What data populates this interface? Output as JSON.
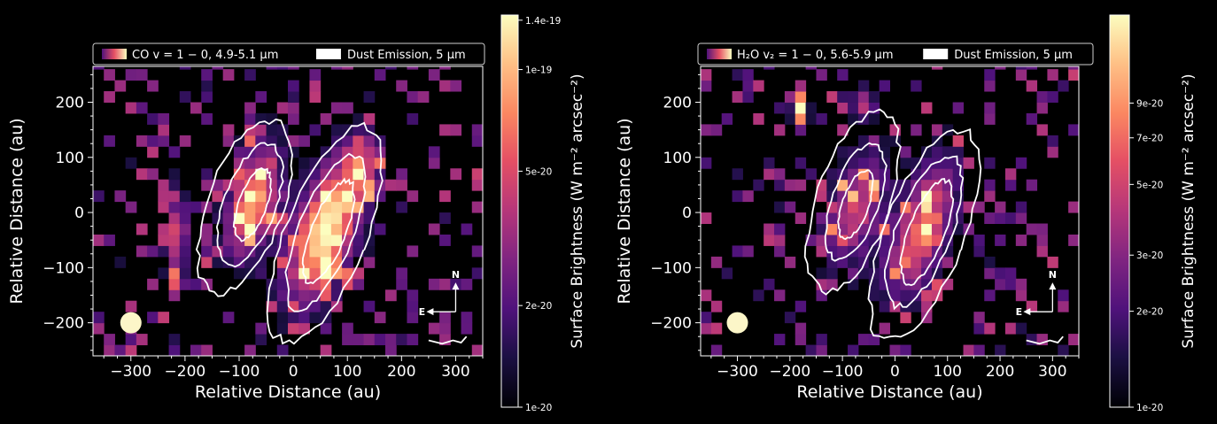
{
  "chart_data": [
    {
      "type": "heatmap",
      "xlabel": "Relative Distance (au)",
      "ylabel": "Relative Distance (au)",
      "xlim": [
        -370,
        350
      ],
      "ylim": [
        -260,
        265
      ],
      "xticks": [
        "−300",
        "−200",
        "−100",
        "0",
        "100",
        "200",
        "300"
      ],
      "xtick_values": [
        -300,
        -200,
        -100,
        0,
        100,
        200,
        300
      ],
      "yticks": [
        "200",
        "100",
        "0",
        "−100",
        "−200"
      ],
      "ytick_values": [
        200,
        100,
        0,
        -100,
        -200
      ],
      "legend": {
        "placement": "top",
        "entries": [
          {
            "label": "CO v = 1 − 0, 4.9-5.1 μm",
            "kind": "gradient"
          },
          {
            "label": "Dust Emission, 5 μm",
            "kind": "white"
          }
        ]
      },
      "colorbar": {
        "label": "Surface Brightness (W m⁻² arcsec⁻²)",
        "scale": "log",
        "min": 1e-20,
        "max": 1.45e-19,
        "ticks": [
          "1.4e-19",
          "1e-19",
          "5e-20",
          "2e-20",
          "1e-20"
        ],
        "tick_values": [
          1.4e-19,
          1e-19,
          5e-20,
          2e-20,
          1e-20
        ]
      },
      "compass": {
        "north": "N",
        "east": "E"
      },
      "beam": {
        "x": -300,
        "y": -200
      },
      "emission_blobs": [
        {
          "x": -75,
          "y": 20,
          "sx": 30,
          "sy": 70,
          "rot": 15,
          "amp": 0.85
        },
        {
          "x": 60,
          "y": -30,
          "sx": 38,
          "sy": 95,
          "rot": 20,
          "amp": 1.0
        },
        {
          "x": -215,
          "y": -40,
          "sx": 15,
          "sy": 55,
          "rot": 0,
          "amp": 0.55
        },
        {
          "x": 125,
          "y": 90,
          "sx": 20,
          "sy": 35,
          "rot": 0,
          "amp": 0.45
        }
      ],
      "dust_contours": [
        {
          "cx": -90,
          "cy": 10,
          "rx": 70,
          "ry": 165,
          "rot": 20
        },
        {
          "cx": -80,
          "cy": 15,
          "rx": 48,
          "ry": 115,
          "rot": 20
        },
        {
          "cx": -75,
          "cy": 15,
          "rx": 26,
          "ry": 68,
          "rot": 20
        },
        {
          "cx": 60,
          "cy": -40,
          "rx": 75,
          "ry": 210,
          "rot": 22
        },
        {
          "cx": 60,
          "cy": -35,
          "rx": 50,
          "ry": 150,
          "rot": 22
        },
        {
          "cx": 65,
          "cy": -35,
          "rx": 32,
          "ry": 100,
          "rot": 22
        }
      ]
    },
    {
      "type": "heatmap",
      "xlabel": "Relative Distance (au)",
      "ylabel": "Relative Distance (au)",
      "xlim": [
        -370,
        350
      ],
      "ylim": [
        -260,
        265
      ],
      "xticks": [
        "−300",
        "−200",
        "−100",
        "0",
        "100",
        "200",
        "300"
      ],
      "xtick_values": [
        -300,
        -200,
        -100,
        0,
        100,
        200,
        300
      ],
      "yticks": [
        "200",
        "100",
        "0",
        "−100",
        "−200"
      ],
      "ytick_values": [
        200,
        100,
        0,
        -100,
        -200
      ],
      "legend": {
        "placement": "top",
        "entries": [
          {
            "label": "H₂O v₂ = 1 − 0, 5.6-5.9 μm",
            "kind": "gradient"
          },
          {
            "label": "Dust Emission, 5 μm",
            "kind": "white"
          }
        ]
      },
      "colorbar": {
        "label": "Surface Brightness (W m⁻² arcsec⁻²)",
        "scale": "log",
        "min": 1e-20,
        "max": 1.7e-19,
        "ticks": [
          "9e-20",
          "7e-20",
          "5e-20",
          "3e-20",
          "2e-20",
          "1e-20"
        ],
        "tick_values": [
          9e-20,
          7e-20,
          5e-20,
          3e-20,
          2e-20,
          1e-20
        ]
      },
      "compass": {
        "north": "N",
        "east": "E"
      },
      "beam": {
        "x": -300,
        "y": -200
      },
      "emission_blobs": [
        {
          "x": -75,
          "y": 10,
          "sx": 35,
          "sy": 75,
          "rot": 15,
          "amp": 0.55
        },
        {
          "x": 50,
          "y": -30,
          "sx": 35,
          "sy": 90,
          "rot": 20,
          "amp": 0.7
        },
        {
          "x": -180,
          "y": 190,
          "sx": 10,
          "sy": 25,
          "rot": 0,
          "amp": 1.0
        },
        {
          "x": -60,
          "y": 200,
          "sx": 15,
          "sy": 20,
          "rot": 0,
          "amp": 0.5
        }
      ],
      "dust_contours": [
        {
          "cx": -80,
          "cy": 20,
          "rx": 70,
          "ry": 170,
          "rot": 20
        },
        {
          "cx": -75,
          "cy": 20,
          "rx": 45,
          "ry": 110,
          "rot": 20
        },
        {
          "cx": -75,
          "cy": 15,
          "rx": 25,
          "ry": 65,
          "rot": 20
        },
        {
          "cx": 55,
          "cy": -40,
          "rx": 75,
          "ry": 205,
          "rot": 22
        },
        {
          "cx": 55,
          "cy": -35,
          "rx": 52,
          "ry": 145,
          "rot": 22
        },
        {
          "cx": 60,
          "cy": -35,
          "rx": 34,
          "ry": 100,
          "rot": 22
        }
      ]
    }
  ]
}
